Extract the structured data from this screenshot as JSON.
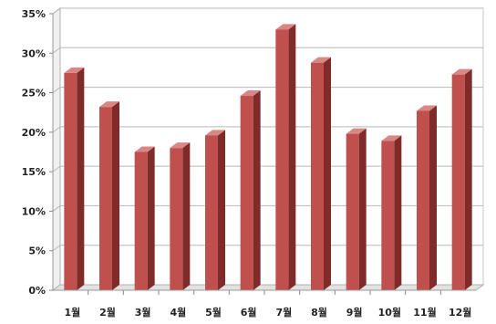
{
  "chart_data": {
    "type": "bar",
    "title": "",
    "xlabel": "",
    "ylabel": "",
    "categories": [
      "1월",
      "2월",
      "3월",
      "4월",
      "5월",
      "6월",
      "7월",
      "8월",
      "9월",
      "10월",
      "11월",
      "12월"
    ],
    "values": [
      27.5,
      23.2,
      17.5,
      18.0,
      19.6,
      24.6,
      33.0,
      28.8,
      19.8,
      18.9,
      22.7,
      27.3
    ],
    "value_format": "percent",
    "ylim": [
      0,
      35
    ],
    "yticks": [
      0,
      5,
      10,
      15,
      20,
      25,
      30,
      35
    ],
    "ytick_labels": [
      "0%",
      "5%",
      "10%",
      "15%",
      "20%",
      "25%",
      "30%",
      "35%"
    ],
    "grid": true,
    "legend": "none",
    "style": "3d-bar",
    "colors": {
      "bar_front": "#c0504d",
      "bar_side": "#7e2b29",
      "bar_top": "#d98784",
      "grid": "#b8b8b8",
      "wall_side": "#f0f0f0",
      "floor": "#e2e2e2"
    }
  }
}
